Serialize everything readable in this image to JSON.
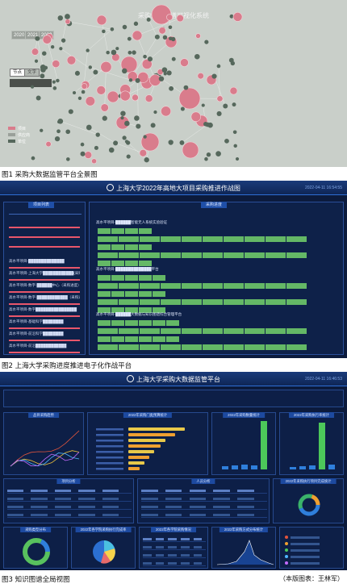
{
  "figure1": {
    "title": "采购知识图谱可视化系统",
    "years": [
      "2020",
      "2021",
      "2022"
    ],
    "toggles": [
      "节点",
      "文字"
    ],
    "legend": [
      "项目",
      "供应商",
      "单位"
    ],
    "colors": {
      "bg": "#c9cfc9",
      "node_large": "#d97c8c",
      "node_small": "#56685c",
      "edge": "#e9ecea"
    },
    "caption": "图1  采购大数据监管平台全景图"
  },
  "figure2": {
    "title": "上海大学2022年高地大项目采购推进作战图",
    "timestamp": "2022-04-11 16:54:55",
    "left_tab": "项目列表",
    "right_tab": "采购进度",
    "left_items": [
      "高水平项目-██████████████",
      "高水平项目-上海大学████████████(采购进度)",
      "高水平项目-数字·██████中心（采购进度）",
      "高水平项目-数字·████████████（采购进度）",
      "高水平项目-数字████████████████",
      "高水平项目-基础科学████████",
      "高水平项目-前沿科学████████",
      "高水平项目-前沿████████████"
    ],
    "right_groups": [
      "高水平项目-██████智能无人系统实验验证",
      "高水平项目-██████████████平台",
      "高水平项目-██████大数据与知识图谱综合管理平台"
    ],
    "caption": "图2  上海大学采购进度推进电子化作战平台"
  },
  "figure3": {
    "title": "上海大学采购大数据监管平台",
    "timestamp": "2022-04-11 16:46:53",
    "panels": [
      "品目采购趋势",
      "2022年采购门类预算统计",
      "2022年采购数量统计",
      "2022年采购执行率统计",
      "项目分析",
      "人员分析",
      "2022年采购执行项目完成统计",
      "采购类型分布",
      "2022年各学院采购执行完成率",
      "2022年各学院采购情况",
      "2022年采购方式分布统计"
    ],
    "caption": "图3  知识图谱全局视图",
    "credit": "（本版图表：王林军）"
  }
}
